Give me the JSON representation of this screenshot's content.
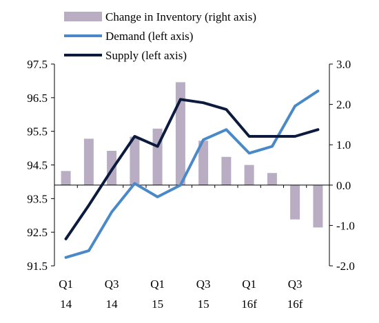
{
  "chart_data": {
    "type": "bar-line-combo",
    "legend_position": "top",
    "grid": false,
    "x": {
      "categories": [
        "Q1 14",
        "Q2 14",
        "Q3 14",
        "Q4 14",
        "Q1 15",
        "Q2 15",
        "Q3 15",
        "Q4 15",
        "Q1 16f",
        "Q2 16f",
        "Q3 16f",
        "Q4 16f"
      ],
      "tick_labels": [
        {
          "index": 0,
          "line1": "Q1",
          "line2": "14"
        },
        {
          "index": 2,
          "line1": "Q3",
          "line2": "14"
        },
        {
          "index": 4,
          "line1": "Q1",
          "line2": "15"
        },
        {
          "index": 6,
          "line1": "Q3",
          "line2": "15"
        },
        {
          "index": 8,
          "line1": "Q1",
          "line2": "16f"
        },
        {
          "index": 10,
          "line1": "Q3",
          "line2": "16f"
        }
      ]
    },
    "y_left": {
      "ylim": [
        91.5,
        97.5
      ],
      "ticks": [
        "91.5",
        "92.5",
        "93.5",
        "94.5",
        "95.5",
        "96.5",
        "97.5"
      ]
    },
    "y_right": {
      "ylim": [
        -2.0,
        3.0
      ],
      "ticks": [
        "-2.0",
        "-1.0",
        "0.0",
        "1.0",
        "2.0",
        "3.0"
      ]
    },
    "series": [
      {
        "name": "Change in Inventory (right axis)",
        "kind": "bar",
        "axis": "right",
        "color": "#b9adc4",
        "values": [
          0.35,
          1.15,
          0.85,
          1.2,
          1.4,
          2.55,
          1.1,
          0.7,
          0.5,
          0.3,
          -0.85,
          -1.05
        ]
      },
      {
        "name": "Demand (left axis)",
        "kind": "line",
        "axis": "left",
        "color": "#4a89c8",
        "values": [
          91.75,
          91.95,
          93.1,
          93.95,
          93.55,
          93.9,
          95.25,
          95.55,
          94.85,
          95.05,
          96.25,
          96.7
        ]
      },
      {
        "name": "Supply (left axis)",
        "kind": "line",
        "axis": "left",
        "color": "#0b1a3d",
        "values": [
          92.3,
          93.3,
          94.35,
          95.35,
          95.05,
          96.45,
          96.35,
          96.15,
          95.35,
          95.35,
          95.35,
          95.55
        ]
      }
    ]
  }
}
